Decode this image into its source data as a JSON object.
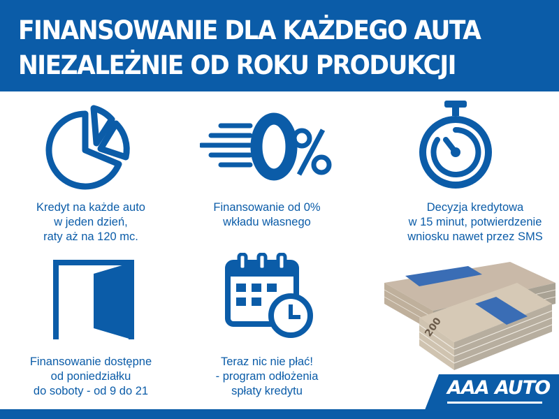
{
  "header": {
    "line1": "FINANSOWANIE DLA KAŻDEGO AUTA",
    "line2": "NIEZALEŻNIE OD ROKU PRODUKCJI"
  },
  "features": [
    {
      "icon": "pie-chart-icon",
      "lines": [
        "Kredyt na każde auto",
        "w jeden dzień,",
        "raty aż na 120 mc."
      ]
    },
    {
      "icon": "zero-percent-icon",
      "icon_text": "0%",
      "lines": [
        "Finansowanie od 0%",
        "wkładu własnego"
      ]
    },
    {
      "icon": "stopwatch-icon",
      "lines": [
        "Decyzja kredytowa",
        "w 15 minut, potwierdzenie",
        "wniosku nawet przez SMS"
      ]
    },
    {
      "icon": "open-door-icon",
      "lines": [
        "Finansowanie dostępne",
        "od poniedziałku",
        "do soboty - od 9 do 21"
      ]
    },
    {
      "icon": "calendar-clock-icon",
      "lines": [
        "Teraz nic nie płać!",
        "- program odłożenia",
        "spłaty kredytu"
      ]
    }
  ],
  "money_image": {
    "banknote_value": "200"
  },
  "brand": {
    "logo": "AAA AUTO",
    "color": "#0b5ca8"
  }
}
